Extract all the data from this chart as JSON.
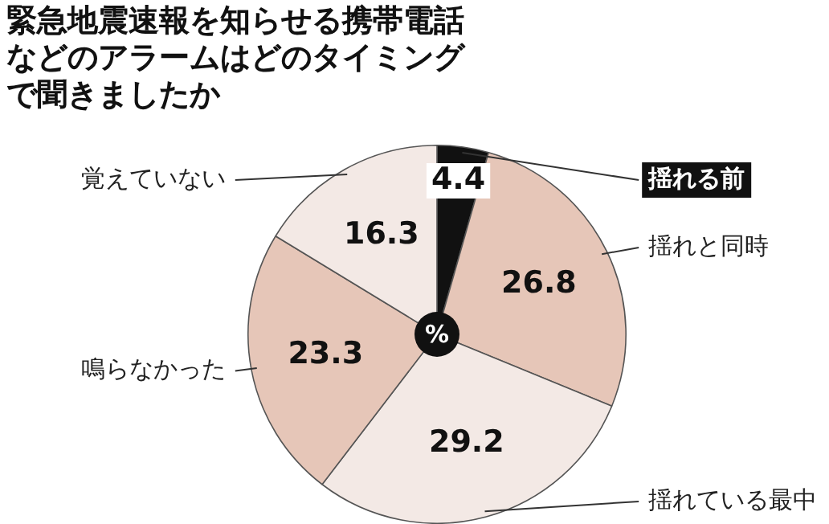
{
  "chart_data": {
    "type": "pie",
    "title": "緊急地震速報を知らせる携帯電話などのアラームはどのタイミングで聞きましたか",
    "categories": [
      "揺れる前",
      "揺れと同時",
      "揺れている最中",
      "鳴らなかった",
      "覚えていない"
    ],
    "values": [
      4.4,
      26.8,
      29.2,
      23.3,
      16.3
    ],
    "colors": [
      "#111111",
      "#e6c6b8",
      "#f3e9e5",
      "#e6c6b8",
      "#f3e9e5"
    ],
    "data_labels": true,
    "legend": false,
    "annotations": [
      "%"
    ]
  }
}
